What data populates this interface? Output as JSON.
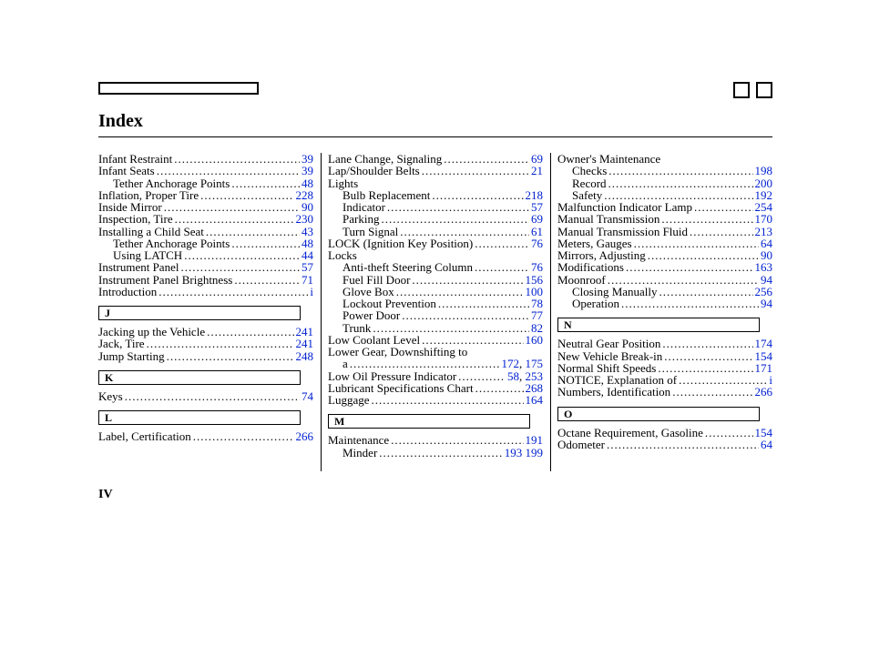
{
  "page": {
    "title": "Index",
    "footer": "IV"
  },
  "columns": [
    {
      "items": [
        {
          "t": "entry",
          "label": "Infant Restraint",
          "page": "39"
        },
        {
          "t": "entry",
          "label": "Infant Seats",
          "page": "39"
        },
        {
          "t": "entry",
          "indent": 1,
          "label": "Tether Anchorage Points",
          "page": "48"
        },
        {
          "t": "entry",
          "label": "Inflation, Proper Tire",
          "page": "228"
        },
        {
          "t": "entry",
          "label": "Inside Mirror",
          "page": "90"
        },
        {
          "t": "entry",
          "label": "Inspection, Tire",
          "page": "230"
        },
        {
          "t": "entry",
          "label": "Installing a Child Seat",
          "page": "43"
        },
        {
          "t": "entry",
          "indent": 1,
          "label": "Tether Anchorage Points",
          "page": "48"
        },
        {
          "t": "entry",
          "indent": 1,
          "label": "Using LATCH",
          "page": "44"
        },
        {
          "t": "entry",
          "label": "Instrument Panel",
          "page": "57"
        },
        {
          "t": "entry",
          "label": "Instrument Panel Brightness",
          "page": "71"
        },
        {
          "t": "entry",
          "label": "Introduction",
          "page": "i"
        },
        {
          "t": "letter",
          "label": "J"
        },
        {
          "t": "entry",
          "label": "Jacking up the Vehicle",
          "page": "241"
        },
        {
          "t": "entry",
          "label": "Jack, Tire",
          "page": "241"
        },
        {
          "t": "entry",
          "label": "Jump Starting",
          "page": "248"
        },
        {
          "t": "letter",
          "label": "K"
        },
        {
          "t": "entry",
          "label": "Keys",
          "page": "74"
        },
        {
          "t": "letter",
          "label": "L"
        },
        {
          "t": "entry",
          "label": "Label, Certification",
          "page": "266"
        }
      ]
    },
    {
      "items": [
        {
          "t": "entry",
          "label": "Lane Change, Signaling",
          "page": "69"
        },
        {
          "t": "entry",
          "label": "Lap/Shoulder Belts",
          "page": "21"
        },
        {
          "t": "head",
          "label": "Lights"
        },
        {
          "t": "entry",
          "indent": 1,
          "label": "Bulb Replacement",
          "page": "218"
        },
        {
          "t": "entry",
          "indent": 1,
          "label": "Indicator",
          "page": "57"
        },
        {
          "t": "entry",
          "indent": 1,
          "label": "Parking",
          "page": "69"
        },
        {
          "t": "entry",
          "indent": 1,
          "label": "Turn Signal",
          "page": "61"
        },
        {
          "t": "entry",
          "label": "LOCK (Ignition Key Position)",
          "page": "76"
        },
        {
          "t": "head",
          "label": "Locks"
        },
        {
          "t": "entry",
          "indent": 1,
          "label": "Anti-theft Steering Column",
          "page": "76"
        },
        {
          "t": "entry",
          "indent": 1,
          "label": "Fuel Fill Door",
          "page": "156"
        },
        {
          "t": "entry",
          "indent": 1,
          "label": "Glove Box",
          "page": "100"
        },
        {
          "t": "entry",
          "indent": 1,
          "label": "Lockout Prevention",
          "page": "78"
        },
        {
          "t": "entry",
          "indent": 1,
          "label": "Power Door",
          "page": "77"
        },
        {
          "t": "entry",
          "indent": 1,
          "label": "Trunk",
          "page": "82"
        },
        {
          "t": "entry",
          "label": "Low Coolant Level",
          "page": "160"
        },
        {
          "t": "head",
          "label": "Lower Gear, Downshifting to"
        },
        {
          "t": "entry",
          "indent": 1,
          "label": "a",
          "pages": [
            "172",
            "175"
          ]
        },
        {
          "t": "entry",
          "label": "Low Oil Pressure Indicator",
          "pages": [
            "58",
            "253"
          ]
        },
        {
          "t": "entry",
          "label": "Lubricant Specifications Chart",
          "page": "268"
        },
        {
          "t": "entry",
          "label": "Luggage",
          "page": "164"
        },
        {
          "t": "letter",
          "label": "M"
        },
        {
          "t": "entry",
          "label": "Maintenance",
          "page": "191"
        },
        {
          "t": "entry",
          "indent": 1,
          "label": "Minder",
          "pages_sep": [
            "193",
            "199"
          ]
        }
      ]
    },
    {
      "items": [
        {
          "t": "head",
          "label": "Owner's Maintenance"
        },
        {
          "t": "entry",
          "indent": 1,
          "label": "Checks",
          "page": "198"
        },
        {
          "t": "entry",
          "indent": 1,
          "label": "Record",
          "page": "200"
        },
        {
          "t": "entry",
          "indent": 1,
          "label": "Safety",
          "page": "192"
        },
        {
          "t": "entry",
          "label": "Malfunction Indicator Lamp",
          "page": "254"
        },
        {
          "t": "entry",
          "label": "Manual Transmission",
          "page": "170"
        },
        {
          "t": "entry",
          "label": "Manual Transmission Fluid",
          "page": "213"
        },
        {
          "t": "entry",
          "label": "Meters, Gauges",
          "page": "64"
        },
        {
          "t": "entry",
          "label": "Mirrors, Adjusting",
          "page": "90"
        },
        {
          "t": "entry",
          "label": "Modifications",
          "page": "163"
        },
        {
          "t": "entry",
          "label": "Moonroof",
          "page": "94"
        },
        {
          "t": "entry",
          "indent": 1,
          "label": "Closing Manually",
          "page": "256"
        },
        {
          "t": "entry",
          "indent": 1,
          "label": "Operation",
          "page": "94"
        },
        {
          "t": "letter",
          "label": "N"
        },
        {
          "t": "entry",
          "label": "Neutral Gear Position",
          "page": "174"
        },
        {
          "t": "entry",
          "label": "New Vehicle Break-in",
          "page": "154"
        },
        {
          "t": "entry",
          "label": "Normal Shift Speeds",
          "page": "171"
        },
        {
          "t": "entry",
          "label": "NOTICE, Explanation of",
          "page": "i"
        },
        {
          "t": "entry",
          "label": "Numbers, Identification",
          "page": "266"
        },
        {
          "t": "letter",
          "label": "O"
        },
        {
          "t": "entry",
          "label": "Octane Requirement, Gasoline",
          "page": "154"
        },
        {
          "t": "entry",
          "label": "Odometer",
          "page": "64"
        }
      ]
    }
  ]
}
